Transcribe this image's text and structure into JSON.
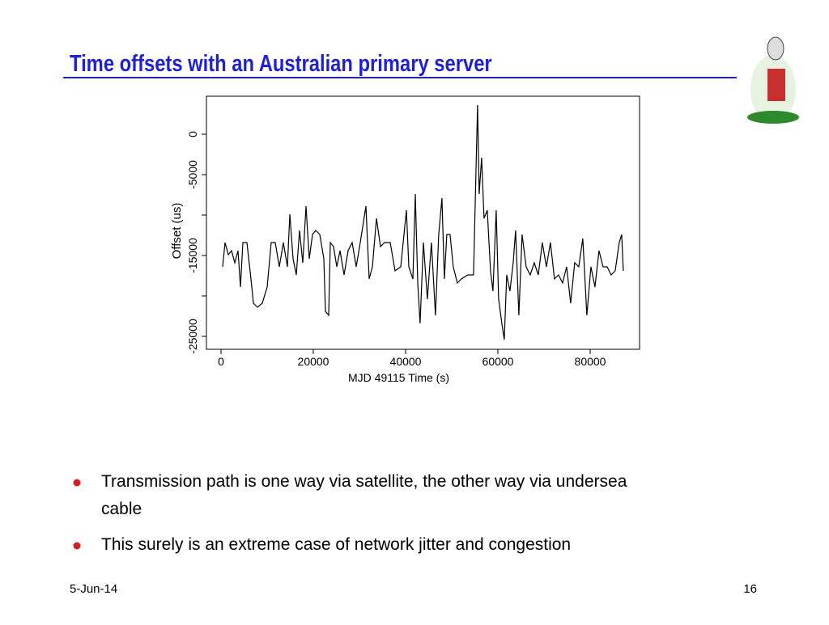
{
  "title": "Time offsets with an Australian primary server",
  "bullets": [
    "Transmission path is one way via satellite, the other way via undersea cable",
    "This surely is an extreme case of network jitter and congestion"
  ],
  "footer": {
    "date": "5-Jun-14",
    "page": "16"
  },
  "chart_data": {
    "type": "line",
    "xlabel": "MJD 49115 Time (s)",
    "ylabel": "Offset (us)",
    "xlim": [
      -3158,
      90700
    ],
    "xticks": [
      0,
      20000,
      40000,
      60000,
      80000
    ],
    "ylim": [
      -26600,
      4700
    ],
    "yticks": [
      -25000,
      -15000,
      -5000,
      0
    ],
    "yminor_ticks": [
      -20000,
      -10000
    ],
    "color": "#000000",
    "x": [
      351,
      877,
      1579,
      2280,
      2982,
      3684,
      4210,
      4736,
      5613,
      6490,
      7016,
      7893,
      8945,
      9998,
      10874,
      11752,
      12629,
      13506,
      14383,
      14909,
      15611,
      16312,
      17014,
      17715,
      18417,
      19119,
      19820,
      20522,
      21399,
      22276,
      22627,
      23328,
      23679,
      24381,
      25082,
      25784,
      26661,
      27538,
      28415,
      29292,
      30169,
      31397,
      32098,
      32800,
      33677,
      34554,
      35431,
      36659,
      37711,
      38939,
      40167,
      40693,
      41570,
      42096,
      42622,
      43148,
      43850,
      44727,
      45604,
      46481,
      47183,
      47884,
      48410,
      48937,
      49638,
      50340,
      51217,
      52094,
      53497,
      54725,
      55602,
      55953,
      56479,
      57005,
      57707,
      58408,
      58935,
      59636,
      60162,
      60864,
      61390,
      61916,
      62618,
      63320,
      63846,
      64547,
      65249,
      66126,
      67003,
      67880,
      68757,
      69634,
      70511,
      71388,
      72265,
      73142,
      74019,
      74896,
      75773,
      76650,
      77527,
      78404,
      79281,
      80158,
      81035,
      81912,
      82789,
      83666,
      84543,
      85420,
      86297,
      86823,
      87174
    ],
    "values": [
      -16400,
      -13400,
      -14900,
      -14400,
      -15900,
      -14400,
      -18900,
      -13400,
      -13400,
      -17900,
      -20900,
      -21400,
      -20900,
      -18900,
      -13400,
      -13400,
      -16400,
      -13400,
      -16400,
      -9900,
      -15400,
      -17400,
      -11900,
      -15900,
      -8900,
      -15400,
      -12400,
      -11900,
      -12400,
      -15400,
      -21900,
      -22400,
      -13400,
      -13900,
      -16400,
      -14400,
      -17400,
      -14400,
      -13400,
      -16400,
      -13400,
      -8900,
      -17900,
      -16400,
      -10400,
      -13900,
      -13400,
      -13400,
      -16900,
      -16400,
      -9400,
      -16400,
      -17900,
      -7400,
      -18400,
      -23400,
      -13400,
      -20400,
      -13400,
      -22400,
      -12400,
      -7900,
      -17900,
      -12400,
      -12400,
      -16400,
      -18400,
      -17900,
      -17400,
      -17400,
      3600,
      -7400,
      -2900,
      -10400,
      -9400,
      -16900,
      -19400,
      -9400,
      -20400,
      -23400,
      -25400,
      -17400,
      -19400,
      -15900,
      -11900,
      -22400,
      -12400,
      -16400,
      -17400,
      -15900,
      -17400,
      -13400,
      -16400,
      -13400,
      -17900,
      -17400,
      -18400,
      -16400,
      -20900,
      -15900,
      -16400,
      -12900,
      -22400,
      -16400,
      -18900,
      -14400,
      -16400,
      -16400,
      -17400,
      -16900,
      -13400,
      -12400,
      -16900
    ]
  }
}
